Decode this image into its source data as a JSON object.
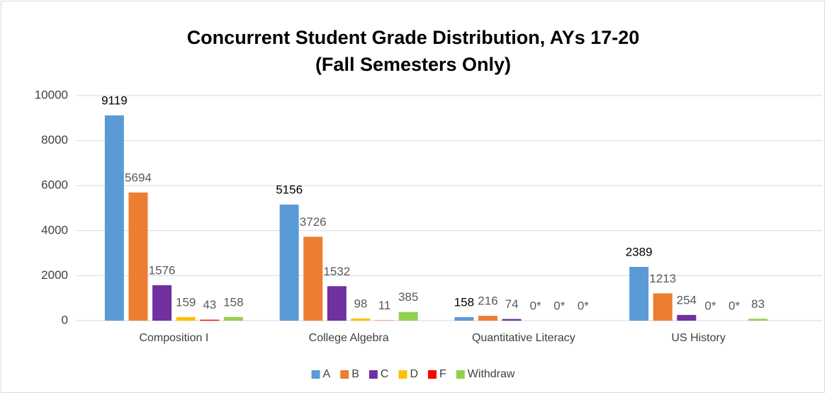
{
  "chart_data": {
    "type": "bar",
    "title": "Concurrent Student Grade Distribution, AYs 17-20 (Fall Semesters Only)",
    "categories": [
      "Composition I",
      "College Algebra",
      "Quantitative Literacy",
      "US History"
    ],
    "series": [
      {
        "name": "A",
        "color": "#5b9bd5",
        "values": [
          9119,
          5156,
          158,
          2389
        ]
      },
      {
        "name": "B",
        "color": "#ed7d31",
        "values": [
          5694,
          3726,
          216,
          1213
        ]
      },
      {
        "name": "C",
        "color": "#7030a0",
        "values": [
          1576,
          1532,
          74,
          254
        ]
      },
      {
        "name": "D",
        "color": "#ffc000",
        "values": [
          159,
          98,
          0,
          0
        ],
        "value_labels": [
          "159",
          "98",
          "0*",
          "0*"
        ]
      },
      {
        "name": "F",
        "color": "#ff0000",
        "values": [
          43,
          11,
          0,
          0
        ],
        "value_labels": [
          "43",
          "11",
          "0*",
          "0*"
        ]
      },
      {
        "name": "Withdraw",
        "color": "#92d050",
        "values": [
          158,
          385,
          0,
          83
        ],
        "value_labels": [
          "158",
          "385",
          "0*",
          "83"
        ]
      }
    ],
    "ylim": [
      0,
      10000
    ],
    "yticks": [
      0,
      2000,
      4000,
      6000,
      8000,
      10000
    ],
    "grid": true,
    "legend": "bottom"
  }
}
